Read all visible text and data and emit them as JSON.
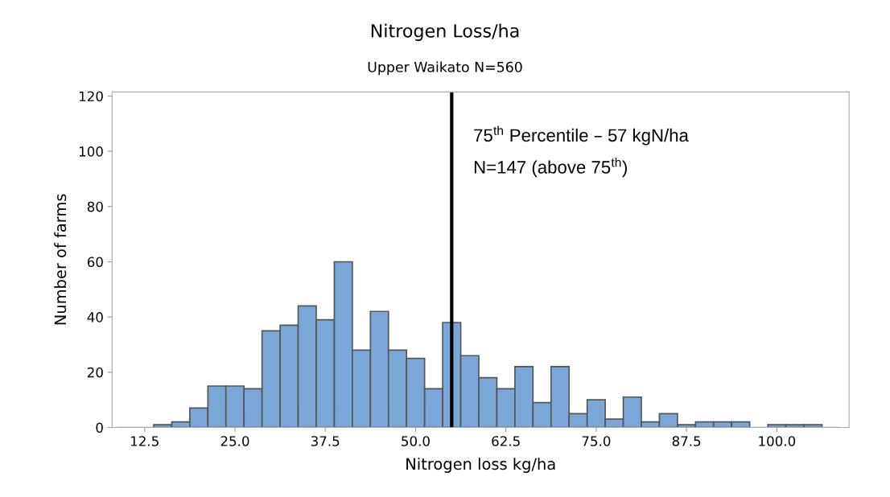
{
  "chart_data": {
    "type": "histogram",
    "title": "Nitrogen Loss/ha",
    "subtitle": "Upper Waikato N=560",
    "xlabel": "Nitrogen loss kg/ha",
    "ylabel": "Number of farms",
    "bins": [
      8.75,
      11.25,
      13.75,
      16.25,
      18.75,
      21.25,
      23.75,
      26.25,
      28.75,
      31.25,
      33.75,
      36.25,
      38.75,
      41.25,
      43.75,
      46.25,
      48.75,
      51.25,
      53.75,
      56.25,
      58.75,
      61.25,
      63.75,
      66.25,
      68.75,
      71.25,
      73.75,
      76.25,
      78.75,
      81.25,
      83.75,
      86.25,
      88.75,
      91.25,
      93.75,
      96.25,
      98.75,
      101.25,
      103.75,
      106.25,
      108.75
    ],
    "values": [
      0,
      0,
      1,
      2,
      7,
      15,
      15,
      14,
      35,
      37,
      44,
      39,
      60,
      28,
      42,
      28,
      25,
      14,
      38,
      26,
      18,
      14,
      22,
      9,
      22,
      5,
      10,
      3,
      11,
      2,
      5,
      1,
      2,
      2,
      2,
      0,
      1,
      1,
      1,
      0
    ],
    "color": "#7aa6d8",
    "xlim": [
      8,
      110
    ],
    "xticks": [
      {
        "value": 12.5,
        "label": "12.5"
      },
      {
        "value": 25,
        "label": "25.0"
      },
      {
        "value": 37.5,
        "label": "37.5"
      },
      {
        "value": 50,
        "label": "50.0"
      },
      {
        "value": 62.5,
        "label": "62.5"
      },
      {
        "value": 75,
        "label": "75.0"
      },
      {
        "value": 87.5,
        "label": "87.5"
      },
      {
        "value": 100,
        "label": "100.0"
      }
    ],
    "ylim": [
      0,
      121.5
    ],
    "yticks": [
      0,
      20,
      40,
      60,
      80,
      100,
      120
    ],
    "ref_lines": [
      {
        "axis": "x",
        "value": 55,
        "color": "#000000"
      }
    ],
    "annotations": [
      "75$^{th}$ Percentile – 57 kgN/ha",
      "N=147 (above 75$^{th}$)"
    ],
    "grid": false,
    "legend": false
  }
}
